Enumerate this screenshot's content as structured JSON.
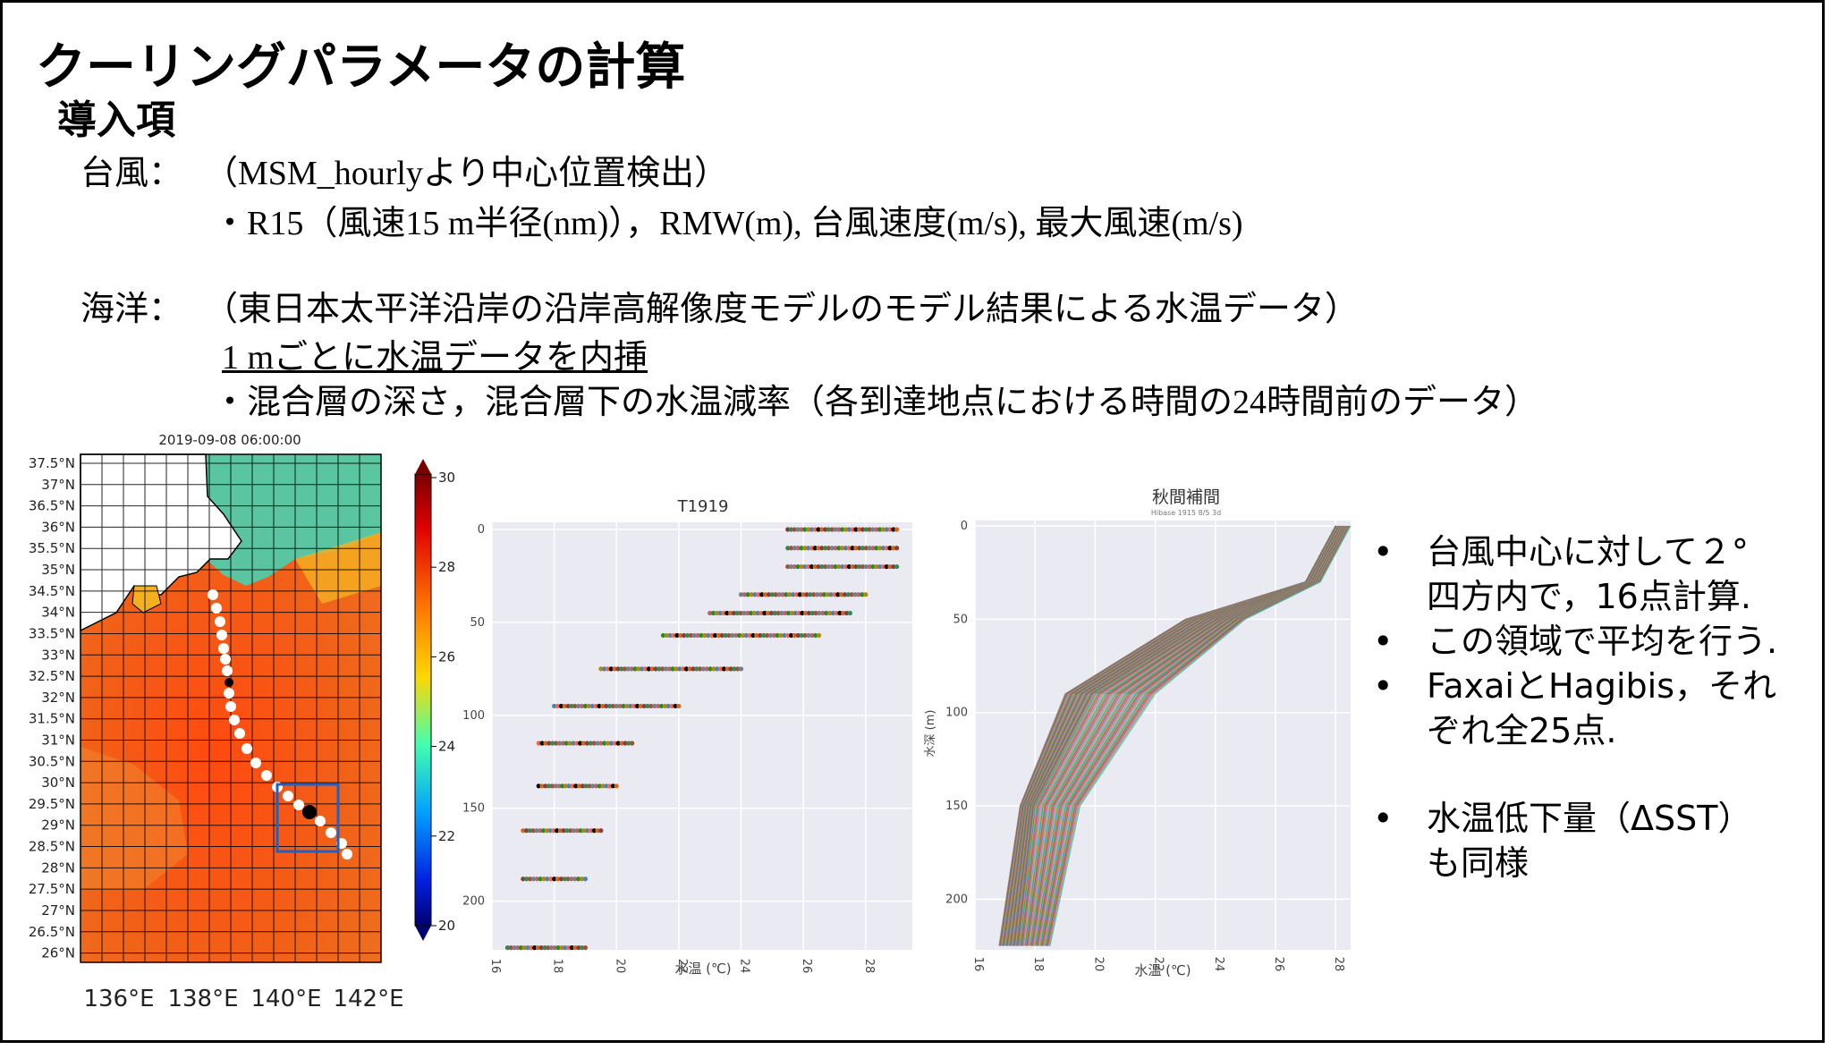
{
  "slide": {
    "title": "クーリングパラメータの計算",
    "subtitle": "導入項",
    "typhoon_label": "台風：",
    "typhoon_desc": "（MSM_hourlyより中心位置検出）",
    "typhoon_items": "・R15（風速15 m半径(nm)），RMW(m),  台風速度(m/s),  最大風速(m/s)",
    "ocean_label": "海洋：",
    "ocean_desc": "（東日本太平洋沿岸の沿岸高解像度モデルのモデル結果による水温データ）",
    "ocean_interp": "1 mごとに水温データを内挿",
    "ocean_items": "・混合層の深さ，混合層下の水温減率（各到達地点における時間の24時間前のデータ）"
  },
  "map": {
    "title": "2019-09-08 06:00:00",
    "lat_labels": [
      "37.5°N",
      "37°N",
      "36.5°N",
      "36°N",
      "35.5°N",
      "35°N",
      "34.5°N",
      "34°N",
      "33.5°N",
      "33°N",
      "32.5°N",
      "32°N",
      "31.5°N",
      "31°N",
      "30.5°N",
      "30°N",
      "29.5°N",
      "29°N",
      "28.5°N",
      "28°N",
      "27.5°N",
      "27°N",
      "26.5°N",
      "26°N"
    ],
    "lon_labels": [
      "136°E",
      "138°E",
      "140°E",
      "142°E"
    ],
    "colorbar_ticks": [
      "30",
      "28",
      "26",
      "24",
      "22",
      "20"
    ],
    "colors": {
      "sea": "#f05a14",
      "land": "#ffffff",
      "kuroshio": "#ff2a10",
      "coast_cold": "#3fd6b8"
    }
  },
  "plot1": {
    "title": "T1919",
    "y_ticks": [
      "0",
      "50",
      "100",
      "150",
      "200"
    ],
    "x_ticks": [
      "16",
      "18",
      "20",
      "22",
      "24",
      "26",
      "28"
    ],
    "xlabel": "水温 (℃)"
  },
  "plot2": {
    "title": "秋間補間",
    "subtitle": "Hibase  1915  8/5 3d",
    "y_ticks": [
      "0",
      "50",
      "100",
      "150",
      "200"
    ],
    "x_ticks": [
      "16",
      "18",
      "20",
      "22",
      "24",
      "26",
      "28"
    ],
    "xlabel": "水温 (℃)",
    "ylabel": "水深 (m)"
  },
  "bullets": {
    "b1_l1": "台風中心に対して２°",
    "b1_l2": "四方内で，16点計算.",
    "b2": "この領域で平均を行う.",
    "b3_l1": "FaxaiとHagibis，それ",
    "b3_l2": "ぞれ全25点.",
    "b4_l1": "水温低下量（ΔSST）",
    "b4_l2": "も同様"
  },
  "chart_data": [
    {
      "type": "scatter",
      "title": "T1919",
      "xlabel": "水温 (℃)",
      "ylabel": "",
      "xlim": [
        16,
        29.5
      ],
      "ylim": [
        230,
        0
      ],
      "series": [
        {
          "x": [
            25.5,
            29
          ],
          "y": [
            0,
            0
          ]
        },
        {
          "x": [
            25.5,
            29
          ],
          "y": [
            10,
            10
          ]
        },
        {
          "x": [
            25.5,
            29
          ],
          "y": [
            20,
            20
          ]
        },
        {
          "x": [
            24,
            28
          ],
          "y": [
            35,
            35
          ]
        },
        {
          "x": [
            23,
            27.5
          ],
          "y": [
            45,
            45
          ]
        },
        {
          "x": [
            21.5,
            26.5
          ],
          "y": [
            57,
            57
          ]
        },
        {
          "x": [
            19.5,
            24
          ],
          "y": [
            75,
            75
          ]
        },
        {
          "x": [
            18,
            22
          ],
          "y": [
            95,
            95
          ]
        },
        {
          "x": [
            17.5,
            20.5
          ],
          "y": [
            115,
            115
          ]
        },
        {
          "x": [
            17.5,
            20
          ],
          "y": [
            138,
            138
          ]
        },
        {
          "x": [
            17,
            19.5
          ],
          "y": [
            162,
            162
          ]
        },
        {
          "x": [
            17,
            19
          ],
          "y": [
            188,
            188
          ]
        },
        {
          "x": [
            16.5,
            19
          ],
          "y": [
            225,
            225
          ]
        }
      ]
    },
    {
      "type": "line",
      "title": "秋間補間",
      "xlabel": "水温 (℃)",
      "ylabel": "水深 (m)",
      "xlim": [
        16,
        28.5
      ],
      "ylim": [
        230,
        0
      ],
      "series": [
        {
          "x": [
            28,
            27,
            24,
            20,
            18,
            17.5
          ],
          "y": [
            0,
            30,
            50,
            90,
            150,
            225
          ]
        },
        {
          "x": [
            28.5,
            27.5,
            25,
            22,
            19.5,
            18.5
          ],
          "y": [
            0,
            30,
            55,
            100,
            160,
            225
          ]
        },
        {
          "x": [
            28,
            27,
            23,
            19,
            17.5,
            16.8
          ],
          "y": [
            0,
            30,
            50,
            90,
            150,
            225
          ]
        }
      ]
    }
  ]
}
